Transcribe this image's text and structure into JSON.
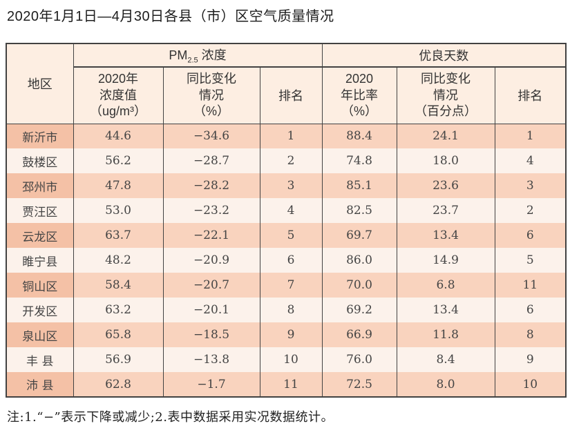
{
  "page": {
    "title": "2020年1月1日—4月30日各县（市）区空气质量情况",
    "footnote": "注:1.“−”表示下降或减少;2.表中数据采用实况数据统计。"
  },
  "colors": {
    "border": "#414141",
    "header-bg": "#fdeee2",
    "row-odd": "#f9d3be",
    "row-odd-region": "#f4c1a6",
    "row-even": "#fcf2eb"
  },
  "table": {
    "region_header": "地区",
    "pm_group": {
      "prefix": "PM",
      "sub": "2.5",
      "suffix": " 浓度"
    },
    "good_group": "优良天数",
    "columns": {
      "pm_value": [
        "2020年",
        "浓度值",
        "（ug/m³）"
      ],
      "pm_change": [
        "同比变化",
        "情况",
        "（%）"
      ],
      "pm_rank": "排名",
      "good_ratio": [
        "2020",
        "年比率",
        "（%）"
      ],
      "good_change": [
        "同比变化",
        "情况",
        "（百分点）"
      ],
      "good_rank": "排名"
    },
    "rows": [
      {
        "region": "新沂市",
        "pm_value": "44.6",
        "pm_change": "−34.6",
        "pm_rank": "1",
        "good_ratio": "88.4",
        "good_change": "24.1",
        "good_rank": "1"
      },
      {
        "region": "鼓楼区",
        "pm_value": "56.2",
        "pm_change": "−28.7",
        "pm_rank": "2",
        "good_ratio": "74.8",
        "good_change": "18.0",
        "good_rank": "4"
      },
      {
        "region": "邳州市",
        "pm_value": "47.8",
        "pm_change": "−28.2",
        "pm_rank": "3",
        "good_ratio": "85.1",
        "good_change": "23.6",
        "good_rank": "3"
      },
      {
        "region": "贾汪区",
        "pm_value": "53.0",
        "pm_change": "−23.2",
        "pm_rank": "4",
        "good_ratio": "82.5",
        "good_change": "23.7",
        "good_rank": "2"
      },
      {
        "region": "云龙区",
        "pm_value": "63.7",
        "pm_change": "−22.1",
        "pm_rank": "5",
        "good_ratio": "69.7",
        "good_change": "13.4",
        "good_rank": "6"
      },
      {
        "region": "睢宁县",
        "pm_value": "48.2",
        "pm_change": "−20.9",
        "pm_rank": "6",
        "good_ratio": "86.0",
        "good_change": "14.9",
        "good_rank": "5"
      },
      {
        "region": "铜山区",
        "pm_value": "58.4",
        "pm_change": "−20.7",
        "pm_rank": "7",
        "good_ratio": "70.0",
        "good_change": "6.8",
        "good_rank": "11"
      },
      {
        "region": "开发区",
        "pm_value": "63.2",
        "pm_change": "−20.1",
        "pm_rank": "8",
        "good_ratio": "69.2",
        "good_change": "13.4",
        "good_rank": "6"
      },
      {
        "region": "泉山区",
        "pm_value": "65.8",
        "pm_change": "−18.5",
        "pm_rank": "9",
        "good_ratio": "66.9",
        "good_change": "11.8",
        "good_rank": "8"
      },
      {
        "region": "丰 县",
        "pm_value": "56.9",
        "pm_change": "−13.8",
        "pm_rank": "10",
        "good_ratio": "76.0",
        "good_change": "8.4",
        "good_rank": "9"
      },
      {
        "region": "沛 县",
        "pm_value": "62.8",
        "pm_change": "−1.7",
        "pm_rank": "11",
        "good_ratio": "72.5",
        "good_change": "8.0",
        "good_rank": "10"
      }
    ]
  }
}
